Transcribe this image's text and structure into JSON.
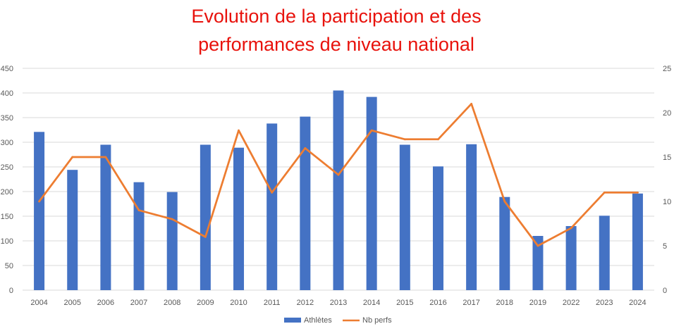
{
  "chart_data": {
    "type": "bar",
    "title_lines": [
      "Evolution de la participation et des",
      "performances de niveau national"
    ],
    "categories": [
      "2004",
      "2005",
      "2006",
      "2007",
      "2008",
      "2009",
      "2010",
      "2011",
      "2012",
      "2013",
      "2014",
      "2015",
      "2016",
      "2017",
      "2018",
      "2019",
      "2022",
      "2023",
      "2024"
    ],
    "series": [
      {
        "name": "Athlètes",
        "type": "bar",
        "axis": "left",
        "color": "#4472c4",
        "values": [
          321,
          244,
          295,
          219,
          199,
          295,
          289,
          338,
          352,
          405,
          392,
          295,
          251,
          296,
          189,
          110,
          130,
          151,
          196
        ]
      },
      {
        "name": "Nb perfs",
        "type": "line",
        "axis": "right",
        "color": "#ed7d31",
        "values": [
          10,
          15,
          15,
          9,
          8,
          6,
          18,
          11,
          16,
          13,
          18,
          17,
          17,
          21,
          10,
          5,
          7,
          11,
          11
        ]
      }
    ],
    "y_left": {
      "min": 0,
      "max": 450,
      "ticks": [
        0,
        50,
        100,
        150,
        200,
        250,
        300,
        350,
        400,
        450
      ]
    },
    "y_right": {
      "min": 0,
      "max": 25,
      "ticks": [
        0,
        5,
        10,
        15,
        20,
        25
      ]
    },
    "grid": true,
    "legend_position": "bottom"
  }
}
